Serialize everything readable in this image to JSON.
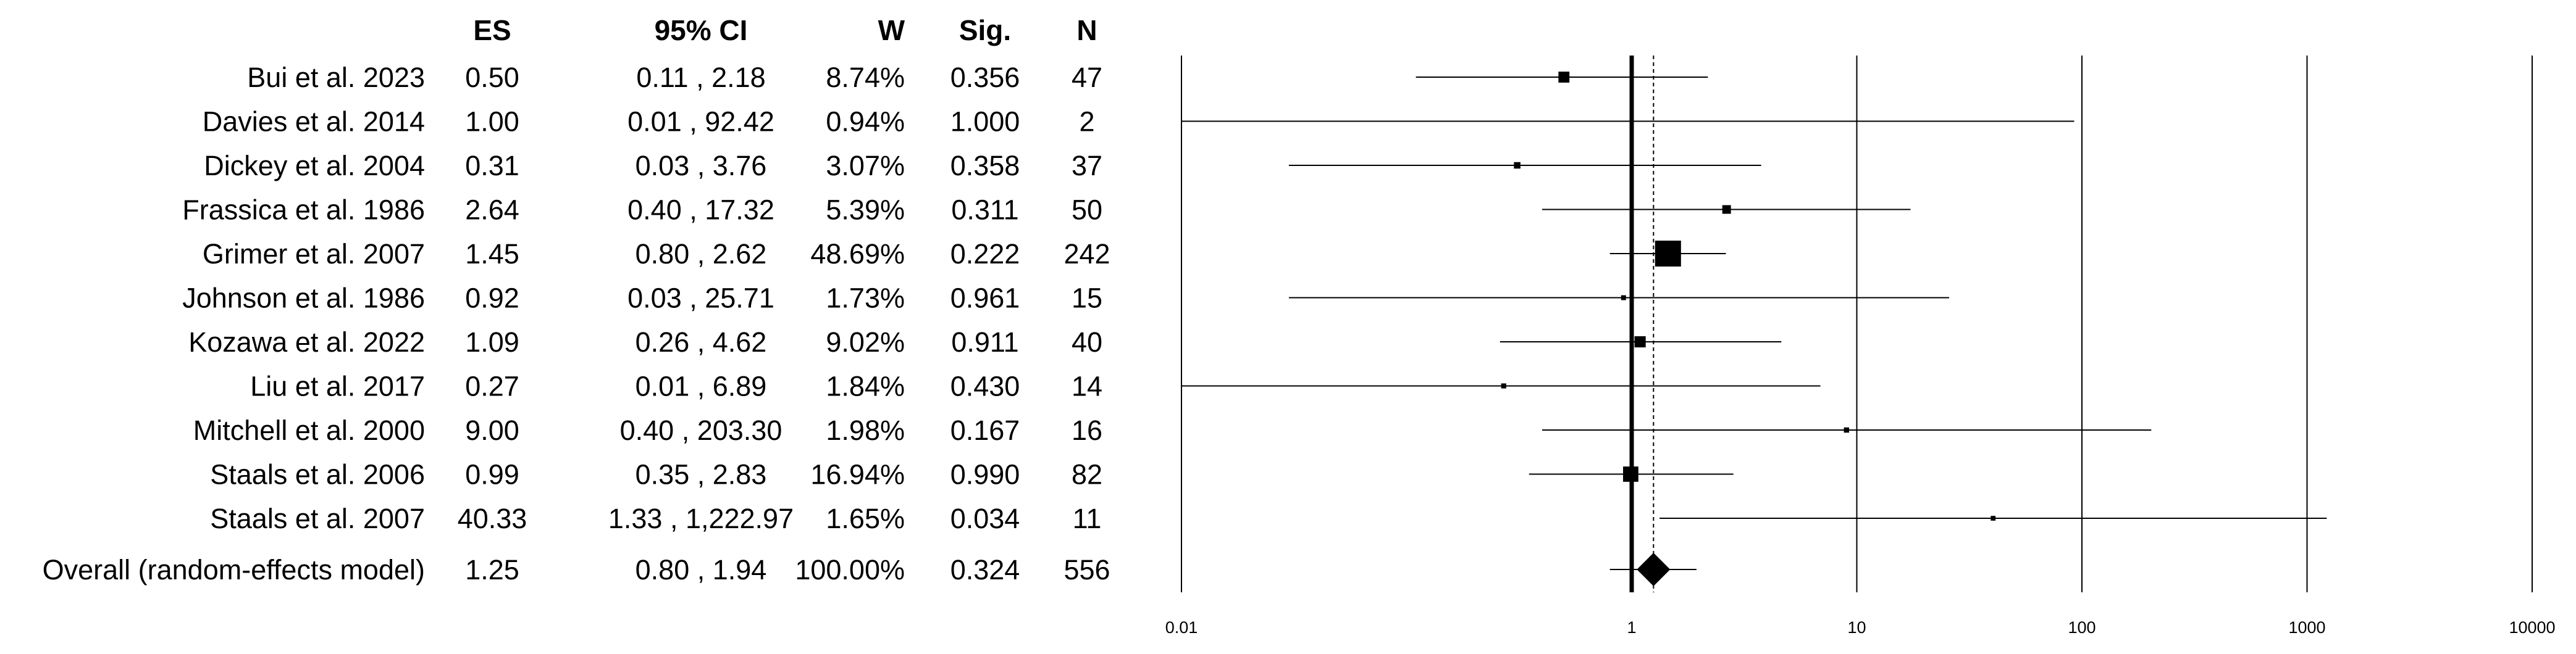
{
  "chart_data": {
    "type": "forest",
    "columns": {
      "study": "",
      "es": "ES",
      "ci": "95% CI",
      "w": "W",
      "sig": "Sig.",
      "n": "N"
    },
    "studies": [
      {
        "label": "Bui et al.  2023",
        "es": 0.5,
        "lo": 0.11,
        "hi": 2.18,
        "es_text": "0.50",
        "ci_text": "0.11 , 2.18",
        "w_text": "8.74%",
        "sig_text": "0.356",
        "n_text": "47",
        "weight": 8.74
      },
      {
        "label": "Davies et al. 2014",
        "es": 1.0,
        "lo": 0.01,
        "hi": 92.42,
        "es_text": "1.00",
        "ci_text": "0.01 , 92.42",
        "w_text": "0.94%",
        "sig_text": "1.000",
        "n_text": "2",
        "weight": 0.94
      },
      {
        "label": "Dickey et al. 2004",
        "es": 0.31,
        "lo": 0.03,
        "hi": 3.76,
        "es_text": "0.31",
        "ci_text": "0.03 , 3.76",
        "w_text": "3.07%",
        "sig_text": "0.358",
        "n_text": "37",
        "weight": 3.07
      },
      {
        "label": "Frassica et al. 1986",
        "es": 2.64,
        "lo": 0.4,
        "hi": 17.32,
        "es_text": "2.64",
        "ci_text": "0.40 , 17.32",
        "w_text": "5.39%",
        "sig_text": "0.311",
        "n_text": "50",
        "weight": 5.39
      },
      {
        "label": "Grimer et al. 2007",
        "es": 1.45,
        "lo": 0.8,
        "hi": 2.62,
        "es_text": "1.45",
        "ci_text": "0.80 , 2.62",
        "w_text": "48.69%",
        "sig_text": "0.222",
        "n_text": "242",
        "weight": 48.69
      },
      {
        "label": "Johnson et al. 1986",
        "es": 0.92,
        "lo": 0.03,
        "hi": 25.71,
        "es_text": "0.92",
        "ci_text": "0.03 , 25.71",
        "w_text": "1.73%",
        "sig_text": "0.961",
        "n_text": "15",
        "weight": 1.73
      },
      {
        "label": "Kozawa et al. 2022",
        "es": 1.09,
        "lo": 0.26,
        "hi": 4.62,
        "es_text": "1.09",
        "ci_text": "0.26 , 4.62",
        "w_text": "9.02%",
        "sig_text": "0.911",
        "n_text": "40",
        "weight": 9.02
      },
      {
        "label": "Liu et al. 2017",
        "es": 0.27,
        "lo": 0.01,
        "hi": 6.89,
        "es_text": "0.27",
        "ci_text": "0.01 , 6.89",
        "w_text": "1.84%",
        "sig_text": "0.430",
        "n_text": "14",
        "weight": 1.84
      },
      {
        "label": "Mitchell et al. 2000",
        "es": 9.0,
        "lo": 0.4,
        "hi": 203.3,
        "es_text": "9.00",
        "ci_text": "0.40 , 203.30",
        "w_text": "1.98%",
        "sig_text": "0.167",
        "n_text": "16",
        "weight": 1.98
      },
      {
        "label": "Staals et al. 2006",
        "es": 0.99,
        "lo": 0.35,
        "hi": 2.83,
        "es_text": "0.99",
        "ci_text": "0.35 , 2.83",
        "w_text": "16.94%",
        "sig_text": "0.990",
        "n_text": "82",
        "weight": 16.94
      },
      {
        "label": "Staals et al. 2007",
        "es": 40.33,
        "lo": 1.33,
        "hi": 1222.97,
        "es_text": "40.33",
        "ci_text": "1.33 , 1,222.97",
        "w_text": "1.65%",
        "sig_text": "0.034",
        "n_text": "11",
        "weight": 1.65
      }
    ],
    "overall": {
      "label": "Overall (random-effects model)",
      "es": 1.25,
      "lo": 0.8,
      "hi": 1.94,
      "es_text": "1.25",
      "ci_text": "0.80 , 1.94",
      "w_text": "100.00%",
      "sig_text": "0.324",
      "n_text": "556"
    },
    "x_scale": "log",
    "xlim": [
      0.01,
      10000
    ],
    "x_ticks": [
      0.01,
      1,
      10,
      100,
      1000,
      10000
    ],
    "x_tick_labels": [
      "0.01",
      "1",
      "10",
      "100",
      "1000",
      "10000"
    ],
    "reference_line": 1,
    "overall_line": 1.25,
    "grid": true
  }
}
